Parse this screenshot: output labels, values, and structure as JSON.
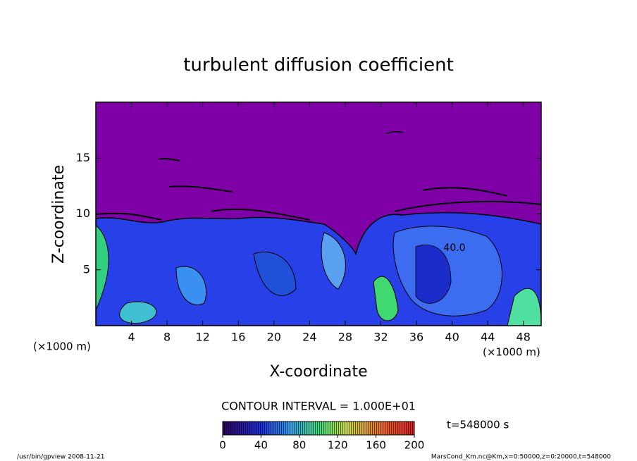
{
  "chart_data": {
    "type": "contour",
    "title": "turbulent diffusion coefficient",
    "xlabel": "X-coordinate",
    "ylabel": "Z-coordinate",
    "axis_unit": "(×1000 m)",
    "xlim": [
      0,
      50
    ],
    "xticks": [
      4,
      8,
      12,
      16,
      20,
      24,
      28,
      32,
      36,
      40,
      44,
      48
    ],
    "ylim": [
      0,
      20
    ],
    "yticks": [
      5,
      10,
      15
    ],
    "contour_interval_label": "CONTOUR INTERVAL = 1.000E+01",
    "contour_label": "40.0",
    "clim": [
      0,
      200
    ],
    "cticks": [
      0,
      40,
      80,
      120,
      160,
      200
    ],
    "time_label": "t=548000 s",
    "footer_left": "/usr/bin/gpview   2008-11-21",
    "footer_right": "MarsCond_Km.nc@Km,x=0:50000,z=0:20000,t=548000"
  }
}
